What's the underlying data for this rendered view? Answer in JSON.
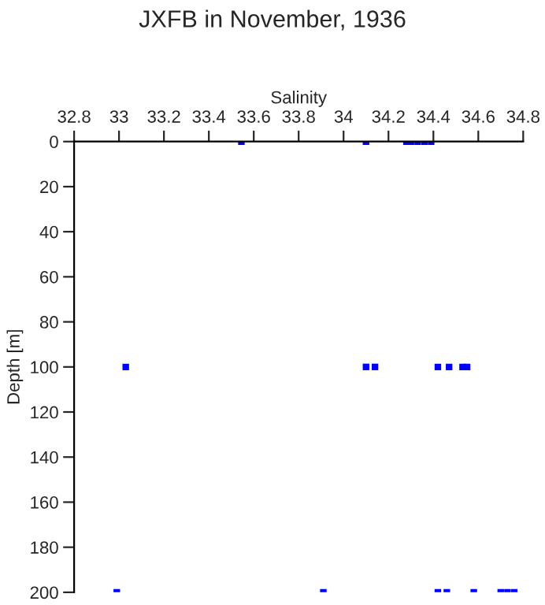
{
  "chart_data": {
    "type": "scatter",
    "title": "JXFB in November, 1936",
    "xlabel": "Salinity",
    "ylabel": "Depth [m]",
    "x": [
      33.545,
      34.1,
      34.28,
      34.3,
      34.33,
      34.36,
      34.39,
      33.03,
      34.1,
      34.14,
      34.42,
      34.47,
      34.53,
      34.55,
      32.99,
      33.91,
      34.42,
      34.46,
      34.58,
      34.7,
      34.73,
      34.76
    ],
    "series": [
      {
        "color": "#0000ff",
        "values": [
          0,
          0,
          0,
          0,
          0,
          0,
          0,
          100,
          100,
          100,
          100,
          100,
          100,
          100,
          200,
          200,
          200,
          200,
          200,
          200,
          200,
          200
        ]
      }
    ],
    "xlim": [
      32.8,
      34.8
    ],
    "xticks": [
      {
        "value": 32.8,
        "label": "32.8"
      },
      {
        "value": 33,
        "label": "33"
      },
      {
        "value": 33.2,
        "label": "33.2"
      },
      {
        "value": 33.4,
        "label": "33.4"
      },
      {
        "value": 33.6,
        "label": "33.6"
      },
      {
        "value": 33.8,
        "label": "33.8"
      },
      {
        "value": 34,
        "label": "34"
      },
      {
        "value": 34.2,
        "label": "34.2"
      },
      {
        "value": 34.4,
        "label": "34.4"
      },
      {
        "value": 34.6,
        "label": "34.6"
      },
      {
        "value": 34.8,
        "label": "34.8"
      }
    ],
    "ylim": [
      200,
      0
    ],
    "yticks": [
      0,
      20,
      40,
      60,
      80,
      100,
      120,
      140,
      160,
      180,
      200
    ],
    "marker": "square",
    "grid": false,
    "legend": false
  }
}
